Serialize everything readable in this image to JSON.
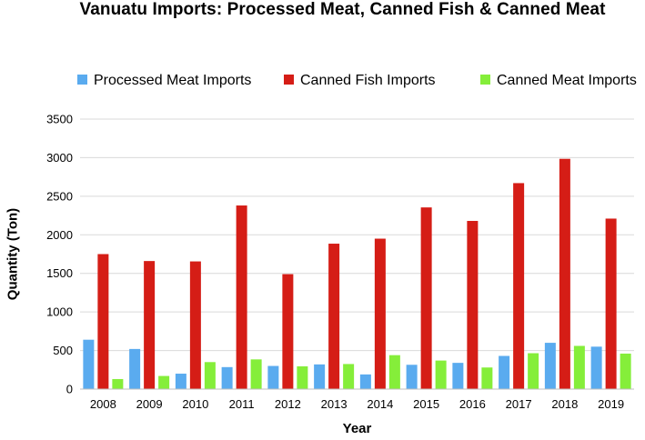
{
  "chart_data": {
    "type": "bar",
    "title": "Vanuatu Imports: Processed Meat, Canned Fish & Canned Meat",
    "xlabel": "Year",
    "ylabel": "Quantity (Ton)",
    "ylim": [
      0,
      3500
    ],
    "yticks": [
      0,
      500,
      1000,
      1500,
      2000,
      2500,
      3000,
      3500
    ],
    "grid": true,
    "legend_position": "top",
    "categories": [
      "2008",
      "2009",
      "2010",
      "2011",
      "2012",
      "2013",
      "2014",
      "2015",
      "2016",
      "2017",
      "2018",
      "2019"
    ],
    "series": [
      {
        "name": "Processed Meat Imports",
        "color": "#5aabef",
        "values": [
          640,
          520,
          200,
          285,
          300,
          320,
          190,
          315,
          340,
          430,
          600,
          550
        ]
      },
      {
        "name": "Canned Fish Imports",
        "color": "#d51d16",
        "values": [
          1750,
          1660,
          1655,
          2380,
          1490,
          1885,
          1950,
          2355,
          2180,
          2670,
          2985,
          2210
        ]
      },
      {
        "name": "Canned Meat Imports",
        "color": "#85ee3a",
        "values": [
          130,
          170,
          350,
          385,
          295,
          325,
          440,
          370,
          280,
          465,
          560,
          460
        ]
      }
    ]
  }
}
